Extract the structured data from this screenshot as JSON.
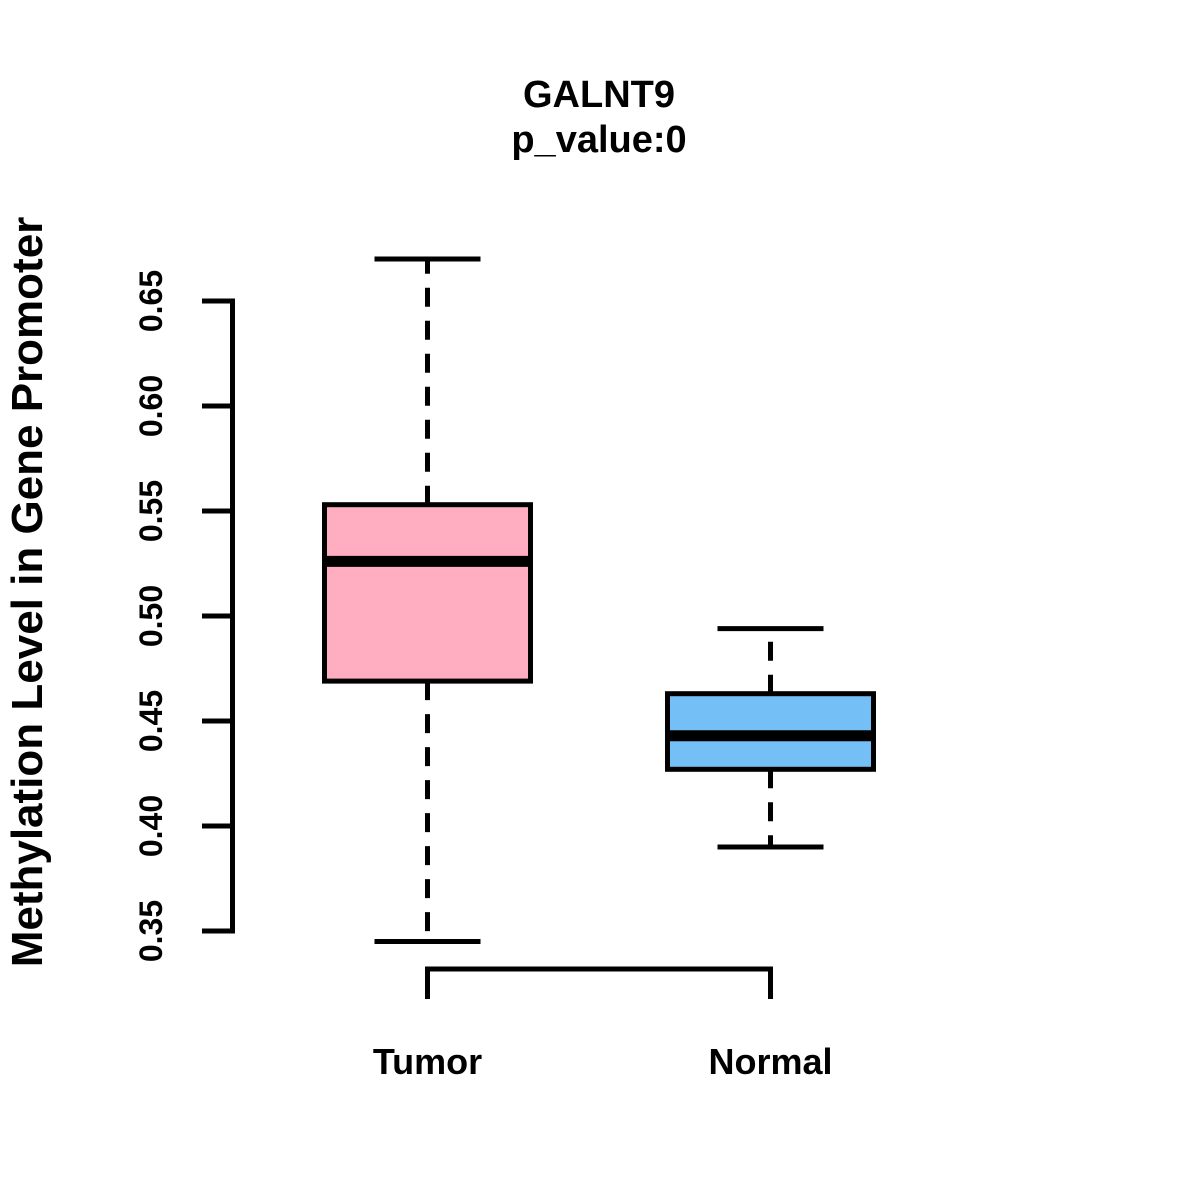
{
  "figure": {
    "background": "#FFFFFF",
    "stroke_color": "#000000"
  },
  "chart_data": {
    "type": "boxplot",
    "title": "GALNT9",
    "subtitle": "p_value:0",
    "ylabel": "Methylation Level in Gene Promoter",
    "xlabel": "",
    "ylim": [
      0.35,
      0.65
    ],
    "y_tick_labels": [
      "0.35",
      "0.40",
      "0.45",
      "0.50",
      "0.55",
      "0.60",
      "0.65"
    ],
    "categories": [
      "Tumor",
      "Normal"
    ],
    "grid": false,
    "legend": false,
    "whisker_style": "dashed",
    "series": [
      {
        "name": "Tumor",
        "fill": "#FFAEC1",
        "whisker_low": 0.345,
        "q1": 0.469,
        "median": 0.526,
        "q3": 0.553,
        "whisker_high": 0.67
      },
      {
        "name": "Normal",
        "fill": "#74BFF5",
        "whisker_low": 0.39,
        "q1": 0.427,
        "median": 0.443,
        "q3": 0.463,
        "whisker_high": 0.494
      }
    ],
    "comparison_bracket": {
      "between": [
        "Tumor",
        "Normal"
      ]
    }
  }
}
